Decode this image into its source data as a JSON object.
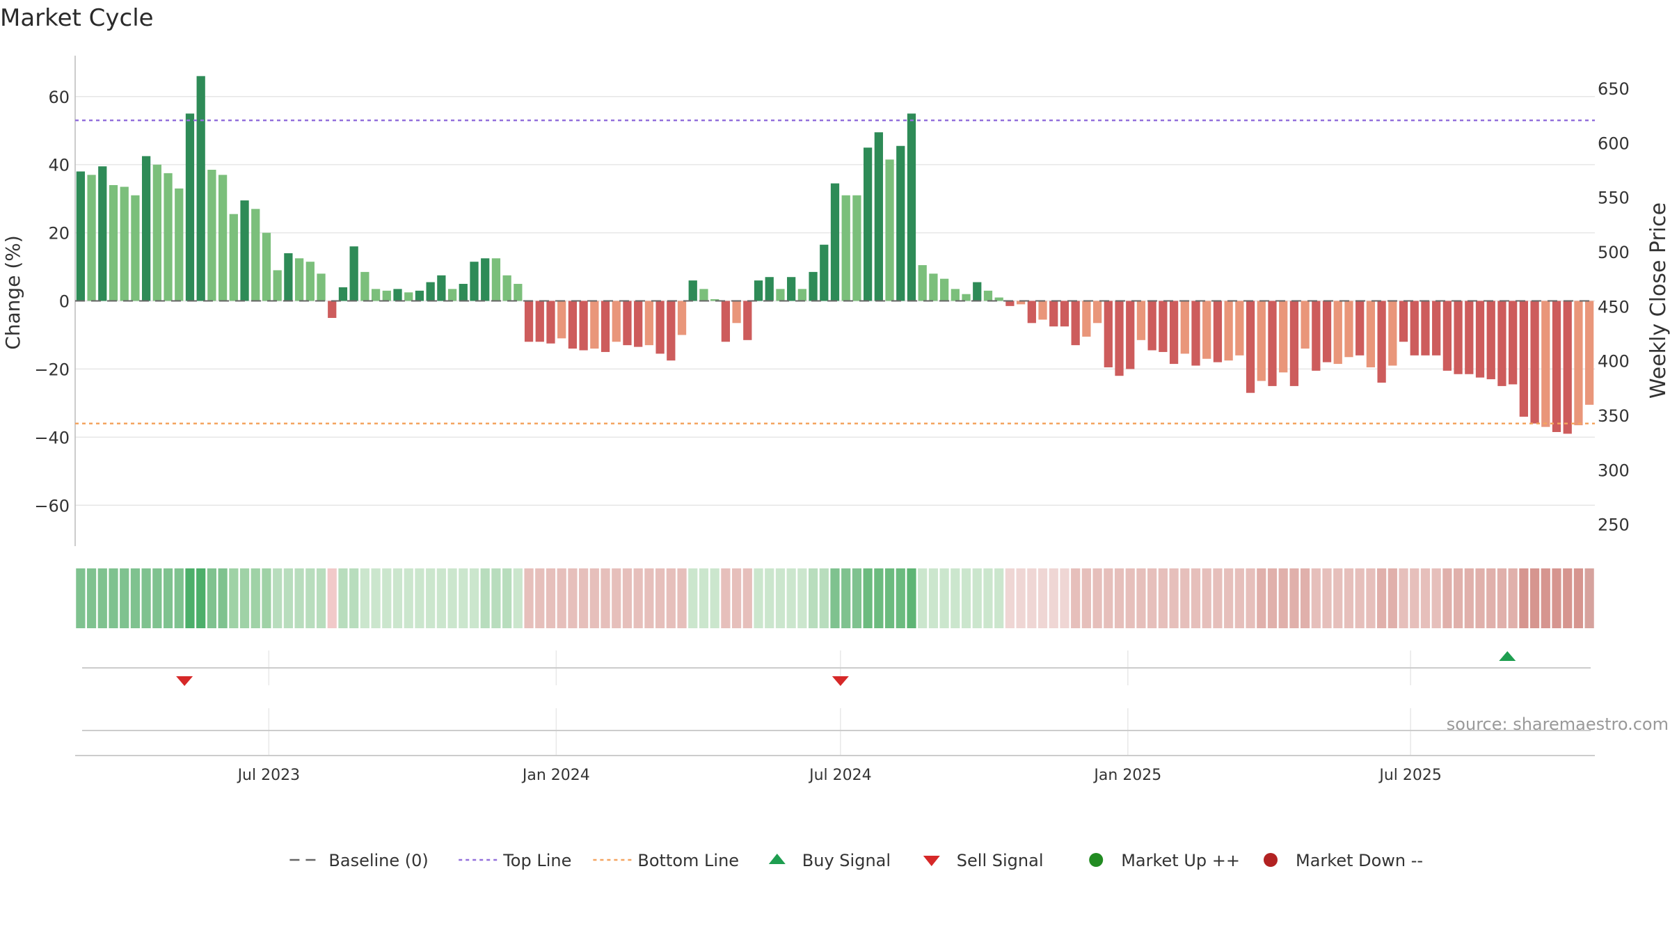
{
  "chart_data": {
    "type": "bar",
    "title": "Market Cycle",
    "ylabel": "Change (%)",
    "ylabel_right": "Weekly Close Price",
    "source": "source: sharemaestro.com",
    "ylim": [
      -72,
      72
    ],
    "yticks": [
      60,
      40,
      20,
      0,
      -20,
      -40,
      -60
    ],
    "ytick_labels": [
      "60",
      "40",
      "20",
      "0",
      "−20",
      "−40",
      "−60"
    ],
    "ylim_right": [
      230,
      680
    ],
    "yticks_right": [
      650,
      600,
      550,
      500,
      450,
      400,
      350,
      300,
      250
    ],
    "start_date": "2023-02-27",
    "x_ticks": [
      {
        "date": "2023-07-01",
        "label": "Jul 2023"
      },
      {
        "date": "2024-01-01",
        "label": "Jan 2024"
      },
      {
        "date": "2024-07-01",
        "label": "Jul 2024"
      },
      {
        "date": "2025-01-01",
        "label": "Jan 2025"
      },
      {
        "date": "2025-07-01",
        "label": "Jul 2025"
      }
    ],
    "top_line": 53,
    "bottom_line": -36,
    "values": [
      38,
      37,
      39.5,
      34,
      33.5,
      31,
      42.5,
      40,
      37.5,
      33,
      55,
      66,
      38.5,
      37,
      25.5,
      29.5,
      27,
      20,
      9,
      14,
      12.5,
      11.5,
      8,
      -5,
      4,
      16,
      8.5,
      3.5,
      3,
      3.5,
      2.5,
      3,
      5.5,
      7.5,
      3.5,
      5,
      11.5,
      12.5,
      12.5,
      7.5,
      5,
      -12,
      -12,
      -12.5,
      -11,
      -14,
      -14.5,
      -14,
      -15,
      -12,
      -13,
      -13.5,
      -13,
      -15.5,
      -17.5,
      -10,
      6,
      3.5,
      0.5,
      -12,
      -6.5,
      -11.5,
      6,
      7,
      3.5,
      7,
      3.5,
      8.5,
      16.5,
      34.5,
      31,
      31,
      45,
      49.5,
      41.5,
      45.5,
      55,
      10.5,
      8,
      6.5,
      3.5,
      2,
      5.5,
      3,
      1,
      -1.5,
      -1,
      -6.5,
      -5.5,
      -7.5,
      -7.5,
      -13,
      -10.5,
      -6.5,
      -19.5,
      -22,
      -20,
      -11.5,
      -14.5,
      -15,
      -18.5,
      -15.5,
      -19,
      -17,
      -18,
      -17.5,
      -16,
      -27,
      -23.5,
      -25,
      -21,
      -25,
      -14,
      -20.5,
      -18,
      -18.5,
      -16.5,
      -16,
      -19.5,
      -24,
      -19,
      -12,
      -16,
      -16,
      -16,
      -20.5,
      -21.5,
      -21.5,
      -22.5,
      -23,
      -25,
      -24.5,
      -34,
      -36,
      -37,
      -38.5,
      -39,
      -36.5,
      -30.5
    ],
    "bar_colors": [
      "#2e8b57",
      "#7bbf7b",
      "#2e8b57",
      "#7bbf7b",
      "#7bbf7b",
      "#7bbf7b",
      "#2e8b57",
      "#7bbf7b",
      "#7bbf7b",
      "#7bbf7b",
      "#2e8b57",
      "#2e8b57",
      "#7bbf7b",
      "#7bbf7b",
      "#7bbf7b",
      "#2e8b57",
      "#7bbf7b",
      "#7bbf7b",
      "#7bbf7b",
      "#2e8b57",
      "#7bbf7b",
      "#7bbf7b",
      "#7bbf7b",
      "#cd5c5c",
      "#2e8b57",
      "#2e8b57",
      "#7bbf7b",
      "#7bbf7b",
      "#7bbf7b",
      "#2e8b57",
      "#7bbf7b",
      "#2e8b57",
      "#2e8b57",
      "#2e8b57",
      "#7bbf7b",
      "#2e8b57",
      "#2e8b57",
      "#2e8b57",
      "#7bbf7b",
      "#7bbf7b",
      "#7bbf7b",
      "#cd5c5c",
      "#cd5c5c",
      "#cd5c5c",
      "#e9967a",
      "#cd5c5c",
      "#cd5c5c",
      "#e9967a",
      "#cd5c5c",
      "#e9967a",
      "#cd5c5c",
      "#cd5c5c",
      "#e9967a",
      "#cd5c5c",
      "#cd5c5c",
      "#e9967a",
      "#2e8b57",
      "#7bbf7b",
      "#7bbf7b",
      "#cd5c5c",
      "#e9967a",
      "#cd5c5c",
      "#2e8b57",
      "#2e8b57",
      "#7bbf7b",
      "#2e8b57",
      "#7bbf7b",
      "#2e8b57",
      "#2e8b57",
      "#2e8b57",
      "#7bbf7b",
      "#7bbf7b",
      "#2e8b57",
      "#2e8b57",
      "#7bbf7b",
      "#2e8b57",
      "#2e8b57",
      "#7bbf7b",
      "#7bbf7b",
      "#7bbf7b",
      "#7bbf7b",
      "#7bbf7b",
      "#2e8b57",
      "#7bbf7b",
      "#7bbf7b",
      "#cd5c5c",
      "#e9967a",
      "#cd5c5c",
      "#e9967a",
      "#cd5c5c",
      "#cd5c5c",
      "#cd5c5c",
      "#e9967a",
      "#e9967a",
      "#cd5c5c",
      "#cd5c5c",
      "#cd5c5c",
      "#e9967a",
      "#cd5c5c",
      "#cd5c5c",
      "#cd5c5c",
      "#e9967a",
      "#cd5c5c",
      "#e9967a",
      "#cd5c5c",
      "#e9967a",
      "#e9967a",
      "#cd5c5c",
      "#e9967a",
      "#cd5c5c",
      "#e9967a",
      "#cd5c5c",
      "#e9967a",
      "#cd5c5c",
      "#cd5c5c",
      "#e9967a",
      "#e9967a",
      "#cd5c5c",
      "#e9967a",
      "#cd5c5c",
      "#e9967a",
      "#cd5c5c",
      "#cd5c5c",
      "#cd5c5c",
      "#cd5c5c",
      "#cd5c5c",
      "#cd5c5c",
      "#cd5c5c",
      "#cd5c5c",
      "#cd5c5c",
      "#cd5c5c",
      "#cd5c5c",
      "#cd5c5c",
      "#cd5c5c",
      "#e9967a",
      "#cd5c5c",
      "#cd5c5c",
      "#e9967a",
      "#e9967a"
    ],
    "band_colors": [
      "#7fc28f",
      "#7fc28f",
      "#7fc28f",
      "#7fc28f",
      "#7fc28f",
      "#7fc28f",
      "#7fc28f",
      "#7fc28f",
      "#7fc28f",
      "#7fc28f",
      "#4caf6a",
      "#4caf6a",
      "#7fc28f",
      "#7fc28f",
      "#9fd2a6",
      "#9fd2a6",
      "#9fd2a6",
      "#9fd2a6",
      "#b8ddbd",
      "#b8ddbd",
      "#b8ddbd",
      "#b8ddbd",
      "#b8ddbd",
      "#f1c9c9",
      "#b8ddbd",
      "#b8ddbd",
      "#cbe6cd",
      "#cbe6cd",
      "#cbe6cd",
      "#cbe6cd",
      "#cbe6cd",
      "#cbe6cd",
      "#cbe6cd",
      "#cbe6cd",
      "#cbe6cd",
      "#cbe6cd",
      "#cbe6cd",
      "#b8ddbd",
      "#b8ddbd",
      "#b8ddbd",
      "#cbe6cd",
      "#e6bfbb",
      "#e6bfbb",
      "#e6bfbb",
      "#e6bfbb",
      "#e6bfbb",
      "#e6bfbb",
      "#e6bfbb",
      "#e6bfbb",
      "#e6bfbb",
      "#e6bfbb",
      "#e6bfbb",
      "#e6bfbb",
      "#e6bfbb",
      "#e6bfbb",
      "#e6bfbb",
      "#cbe6cd",
      "#cbe6cd",
      "#cbe6cd",
      "#e6bfbb",
      "#e6bfbb",
      "#e6bfbb",
      "#cbe6cd",
      "#cbe6cd",
      "#cbe6cd",
      "#cbe6cd",
      "#cbe6cd",
      "#b8ddbd",
      "#b8ddbd",
      "#7fc28f",
      "#7fc28f",
      "#7fc28f",
      "#6cbb7f",
      "#6cbb7f",
      "#6cbb7f",
      "#6cbb7f",
      "#5eb574",
      "#cbe6cd",
      "#cbe6cd",
      "#cbe6cd",
      "#cbe6cd",
      "#cbe6cd",
      "#cbe6cd",
      "#cbe6cd",
      "#cbe6cd",
      "#efd6d4",
      "#efd6d4",
      "#efd6d4",
      "#efd6d4",
      "#efd6d4",
      "#efd6d4",
      "#e6bfbb",
      "#e6bfbb",
      "#e6bfbb",
      "#e6bfbb",
      "#e6bfbb",
      "#e6bfbb",
      "#e6bfbb",
      "#e6bfbb",
      "#e6bfbb",
      "#e6bfbb",
      "#e6bfbb",
      "#e6bfbb",
      "#e6bfbb",
      "#e6bfbb",
      "#e6bfbb",
      "#e6bfbb",
      "#e6bfbb",
      "#e0b0ab",
      "#e0b0ab",
      "#e0b0ab",
      "#e0b0ab",
      "#e0b0ab",
      "#e6bfbb",
      "#e6bfbb",
      "#e6bfbb",
      "#e6bfbb",
      "#e6bfbb",
      "#e6bfbb",
      "#e0b0ab",
      "#e0b0ab",
      "#e6bfbb",
      "#e6bfbb",
      "#e6bfbb",
      "#e6bfbb",
      "#e0b0ab",
      "#e0b0ab",
      "#e0b0ab",
      "#e0b0ab",
      "#e0b0ab",
      "#e0b0ab",
      "#e0b0ab",
      "#d6958f",
      "#d6958f",
      "#d6958f",
      "#d6958f",
      "#d6958f",
      "#d6958f",
      "#d6a29d"
    ],
    "signals": [
      {
        "type": "sell",
        "date": "2023-05-08"
      },
      {
        "type": "sell",
        "date": "2024-07-01"
      },
      {
        "type": "buy",
        "date": "2025-09-01"
      }
    ],
    "legend_position": "bottom-center",
    "legend": [
      {
        "label": "Baseline (0)",
        "marker": "dashed-line",
        "color": "#666666"
      },
      {
        "label": "Top Line",
        "marker": "dotted-line",
        "color": "#9370db"
      },
      {
        "label": "Bottom Line",
        "marker": "dotted-line",
        "color": "#f4a460"
      },
      {
        "label": "Buy Signal",
        "marker": "triangle-up",
        "color": "#1e9e50"
      },
      {
        "label": "Sell Signal",
        "marker": "triangle-down",
        "color": "#d62828"
      },
      {
        "label": "Market Up ++",
        "marker": "circle",
        "color": "#228b22"
      },
      {
        "label": "Market Down --",
        "marker": "circle",
        "color": "#b22222"
      }
    ]
  }
}
